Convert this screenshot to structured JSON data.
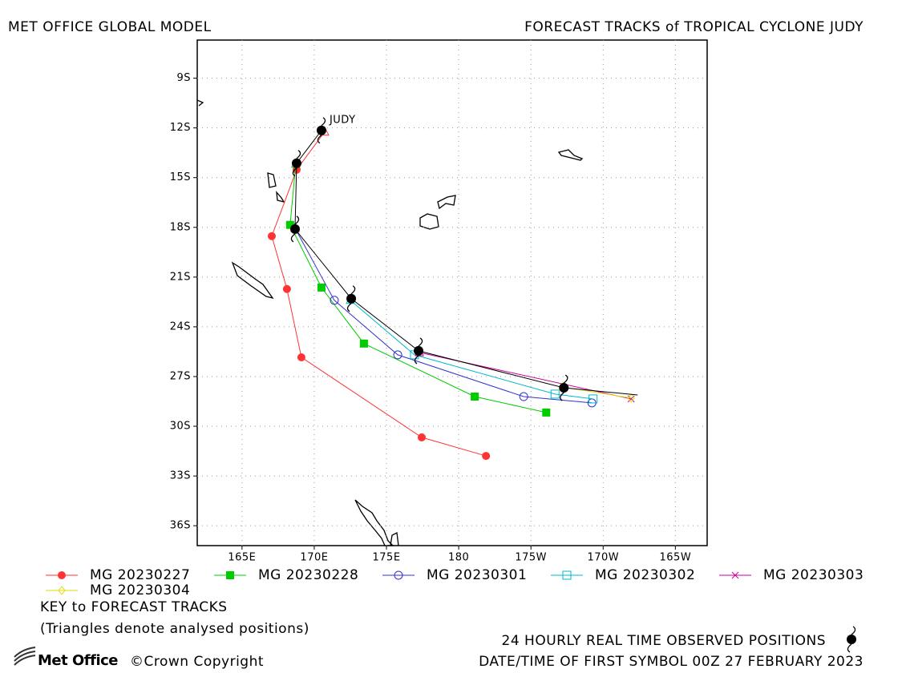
{
  "chart_data": {
    "type": "track-map",
    "title_left": "MET OFFICE GLOBAL MODEL",
    "title_right": "FORECAST TRACKS of TROPICAL CYCLONE JUDY",
    "annotation": "JUDY",
    "xlim": [
      161.9,
      197.2
    ],
    "ylim": [
      -37.2,
      -6.7
    ],
    "xticks": [
      {
        "value": 165,
        "label": "165E"
      },
      {
        "value": 170,
        "label": "170E"
      },
      {
        "value": 175,
        "label": "175E"
      },
      180,
      {
        "value": 185,
        "label": "175W"
      },
      {
        "value": 190,
        "label": "170W"
      },
      {
        "value": 195,
        "label": "165W"
      }
    ],
    "yticks": [
      {
        "value": -9,
        "label": "9S"
      },
      {
        "value": -12,
        "label": "12S"
      },
      {
        "value": -15,
        "label": "15S"
      },
      {
        "value": -18,
        "label": "18S"
      },
      {
        "value": -21,
        "label": "21S"
      },
      {
        "value": -24,
        "label": "24S"
      },
      {
        "value": -27,
        "label": "27S"
      },
      {
        "value": -30,
        "label": "30S"
      },
      {
        "value": -33,
        "label": "33S"
      },
      {
        "value": -36,
        "label": "36S"
      }
    ],
    "grid": true,
    "series": [
      {
        "name": "MG 20230227",
        "color": "#ff3333",
        "marker": "filled-circle",
        "x": [
          170.72,
          168.78,
          167.06,
          168.11,
          169.11,
          177.44,
          181.89
        ],
        "y": [
          -12.24,
          -14.52,
          -18.53,
          -21.72,
          -25.84,
          -30.67,
          -31.79
        ]
      },
      {
        "name": "MG 20230228",
        "color": "#00cc00",
        "marker": "filled-square",
        "x": [
          168.72,
          168.33,
          170.5,
          173.44,
          181.11,
          186.06
        ],
        "y": [
          -14.18,
          -17.85,
          -21.63,
          -25.01,
          -28.21,
          -29.17
        ]
      },
      {
        "name": "MG 20230301",
        "color": "#3333cc",
        "marker": "open-circle",
        "x": [
          168.67,
          171.39,
          175.78,
          184.5,
          189.22
        ],
        "y": [
          -18.05,
          -22.4,
          -25.69,
          -28.21,
          -28.59
        ]
      },
      {
        "name": "MG 20230302",
        "color": "#00b8cc",
        "marker": "open-square",
        "x": [
          172.5,
          176.94,
          186.67,
          189.3
        ],
        "y": [
          -22.4,
          -25.69,
          -28.06,
          -28.35
        ]
      },
      {
        "name": "MG 20230303",
        "color": "#cc0099",
        "marker": "cross",
        "x": [
          177.28,
          191.94
        ],
        "y": [
          -25.55,
          -28.35
        ]
      },
      {
        "name": "MG 20230304",
        "color": "#dddd00",
        "marker": "diamond",
        "x": [
          187.22,
          191.94
        ],
        "y": [
          -27.63,
          -28.3
        ]
      }
    ],
    "observed": {
      "name": "24 HOURLY REAL TIME OBSERVED POSITIONS",
      "color": "#000000",
      "x": [
        170.5,
        168.78,
        168.67,
        172.56,
        177.22,
        187.28,
        192.39
      ],
      "y": [
        -12.15,
        -14.13,
        -18.1,
        -22.3,
        -25.45,
        -27.68,
        -28.11
      ]
    },
    "key_title": "KEY to FORECAST TRACKS",
    "key_note": "(Triangles denote analysed positions)",
    "date_note": "DATE/TIME OF FIRST SYMBOL 00Z 27 FEBRUARY 2023",
    "logo": "Met Office",
    "copyright": "©Crown Copyright"
  }
}
